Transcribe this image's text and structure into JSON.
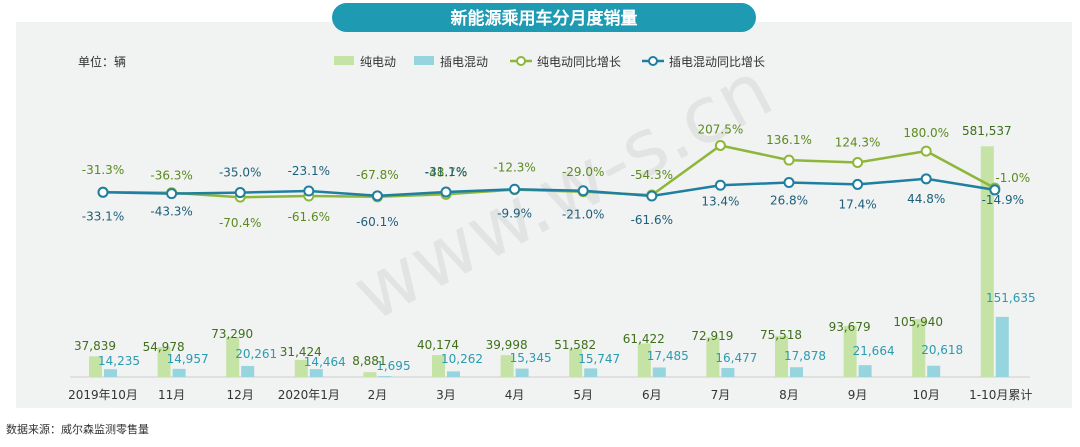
{
  "chart_data": {
    "type": "bar+line",
    "title": "新能源乘用车分月度销量",
    "unit_label": "单位：辆",
    "source": "数据来源：威尔森监测零售量",
    "watermark": "www.w-s.cn",
    "categories": [
      "2019年10月",
      "11月",
      "12月",
      "2020年1月",
      "2月",
      "3月",
      "4月",
      "5月",
      "6月",
      "7月",
      "8月",
      "9月",
      "10月",
      "1-10月累计"
    ],
    "bar_series": [
      {
        "name": "纯电动",
        "color": "#c5e3a4",
        "label_color": "#3f6f1c",
        "values": [
          37839,
          54978,
          73290,
          31424,
          8881,
          40174,
          39998,
          51582,
          61422,
          72919,
          75518,
          93679,
          105940,
          581537
        ],
        "labels": [
          "37,839",
          "54,978",
          "73,290",
          "31,424",
          "8,881",
          "40,174",
          "39,998",
          "51,582",
          "61,422",
          "72,919",
          "75,518",
          "93,679",
          "105,940",
          "581,537"
        ]
      },
      {
        "name": "插电混动",
        "color": "#96d4de",
        "label_color": "#2a9bb0",
        "values": [
          14235,
          14957,
          20261,
          14464,
          1695,
          10262,
          15345,
          15747,
          17485,
          16477,
          17878,
          21664,
          20618,
          151635
        ],
        "labels": [
          "14,235",
          "14,957",
          "20,261",
          "14,464",
          "1,695",
          "10,262",
          "15,345",
          "15,747",
          "17,485",
          "16,477",
          "17,878",
          "21,664",
          "20,618",
          "151,635"
        ]
      }
    ],
    "line_series": [
      {
        "name": "纯电动同比增长",
        "color": "#8db63a",
        "label_color": "#5c8a1f",
        "values": [
          -31.3,
          -36.3,
          -70.4,
          -61.6,
          -67.8,
          -48.7,
          -12.3,
          -29.0,
          -54.3,
          207.5,
          136.1,
          124.3,
          180.0,
          -1.0
        ],
        "labels": [
          "-31.3%",
          "-36.3%",
          "-70.4%",
          "-61.6%",
          "-67.8%",
          "-48.7%",
          "-12.3%",
          "-29.0%",
          "-54.3%",
          "207.5%",
          "136.1%",
          "124.3%",
          "180.0%",
          "-1.0%"
        ]
      },
      {
        "name": "插电混动同比增长",
        "color": "#1f7fa0",
        "label_color": "#1d5f7a",
        "values": [
          -33.1,
          -43.3,
          -35.0,
          -23.1,
          -60.1,
          -31.1,
          -9.9,
          -21.0,
          -61.6,
          13.4,
          26.8,
          17.4,
          44.8,
          -14.9
        ],
        "labels": [
          "-33.1%",
          "-43.3%",
          "-35.0%",
          "-23.1%",
          "-60.1%",
          "-31.1%",
          "-9.9%",
          "-21.0%",
          "-61.6%",
          "13.4%",
          "26.8%",
          "17.4%",
          "44.8%",
          "-14.9%"
        ]
      }
    ],
    "legend_position": "top-center",
    "grid": false
  }
}
